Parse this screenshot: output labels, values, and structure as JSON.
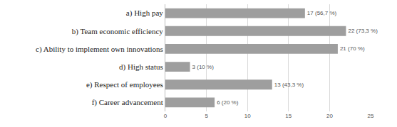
{
  "chart_data": {
    "type": "bar",
    "orientation": "horizontal",
    "categories": [
      "a) High pay",
      "b) Team economic efficiency",
      "c) Ability to implement own innovations",
      "d) High status",
      "e) Respect of employees",
      "f) Career advancement"
    ],
    "values": [
      17,
      22,
      21,
      3,
      13,
      6
    ],
    "value_labels": [
      "17 (56,7 %)",
      "22 (73,3 %)",
      "21 (70 %)",
      "3 (10 %)",
      "13 (43,3 %)",
      "6 (20 %)"
    ],
    "data_labels": true,
    "color": "#9e9e9e",
    "xlim": [
      0,
      25
    ],
    "xticks": [
      0,
      5,
      10,
      15,
      20,
      25
    ],
    "grid": true
  }
}
